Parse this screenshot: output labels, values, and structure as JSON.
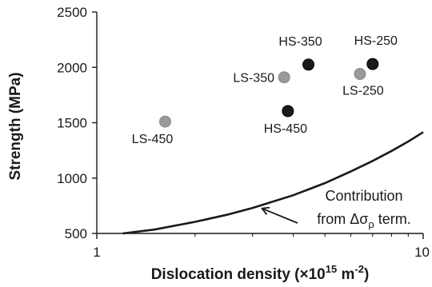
{
  "chart_data": {
    "type": "scatter",
    "title": "",
    "xlabel": "Dislocation density (×10¹⁵ m⁻²)",
    "ylabel": "Strength (MPa)",
    "xscale": "log",
    "xlim": [
      1,
      10
    ],
    "ylim": [
      500,
      2500
    ],
    "xticks": [
      1,
      10
    ],
    "xtick_labels": [
      "1",
      "10"
    ],
    "yticks": [
      500,
      1000,
      1500,
      2000,
      2500
    ],
    "ytick_labels": [
      "500",
      "1000",
      "1500",
      "2000",
      "2500"
    ],
    "grid": false,
    "colors": {
      "LS": "#9a9a9a",
      "HS": "#1a1a1a",
      "curve": "#1a1a1a"
    },
    "points": [
      {
        "label": "LS-450",
        "group": "LS",
        "x": 1.62,
        "y": 1510
      },
      {
        "label": "LS-350",
        "group": "LS",
        "x": 3.75,
        "y": 1910
      },
      {
        "label": "LS-250",
        "group": "LS",
        "x": 6.4,
        "y": 1940
      },
      {
        "label": "HS-450",
        "group": "HS",
        "x": 3.85,
        "y": 1605
      },
      {
        "label": "HS-350",
        "group": "HS",
        "x": 4.45,
        "y": 2025
      },
      {
        "label": "HS-250",
        "group": "HS",
        "x": 7.0,
        "y": 2030
      }
    ],
    "curve": {
      "label": "Contribution from Δσρ term.",
      "x": [
        1.2,
        1.5,
        2.0,
        2.5,
        3.0,
        4.0,
        5.0,
        6.0,
        7.0,
        8.0,
        9.0,
        10.0
      ],
      "y": [
        500,
        535,
        605,
        668,
        730,
        845,
        955,
        1060,
        1155,
        1245,
        1330,
        1415
      ]
    },
    "annotation": {
      "line1": "Contribution",
      "line2_prefix": "from Δσ",
      "line2_sub": "ρ",
      "line2_suffix": " term.",
      "arrow_target": {
        "x": 3.15,
        "y": 745
      }
    },
    "xlabel_parts": {
      "main": "Dislocation density (×10",
      "exp1": "15",
      "mid": " m",
      "exp2": "-2",
      "end": ")"
    }
  }
}
